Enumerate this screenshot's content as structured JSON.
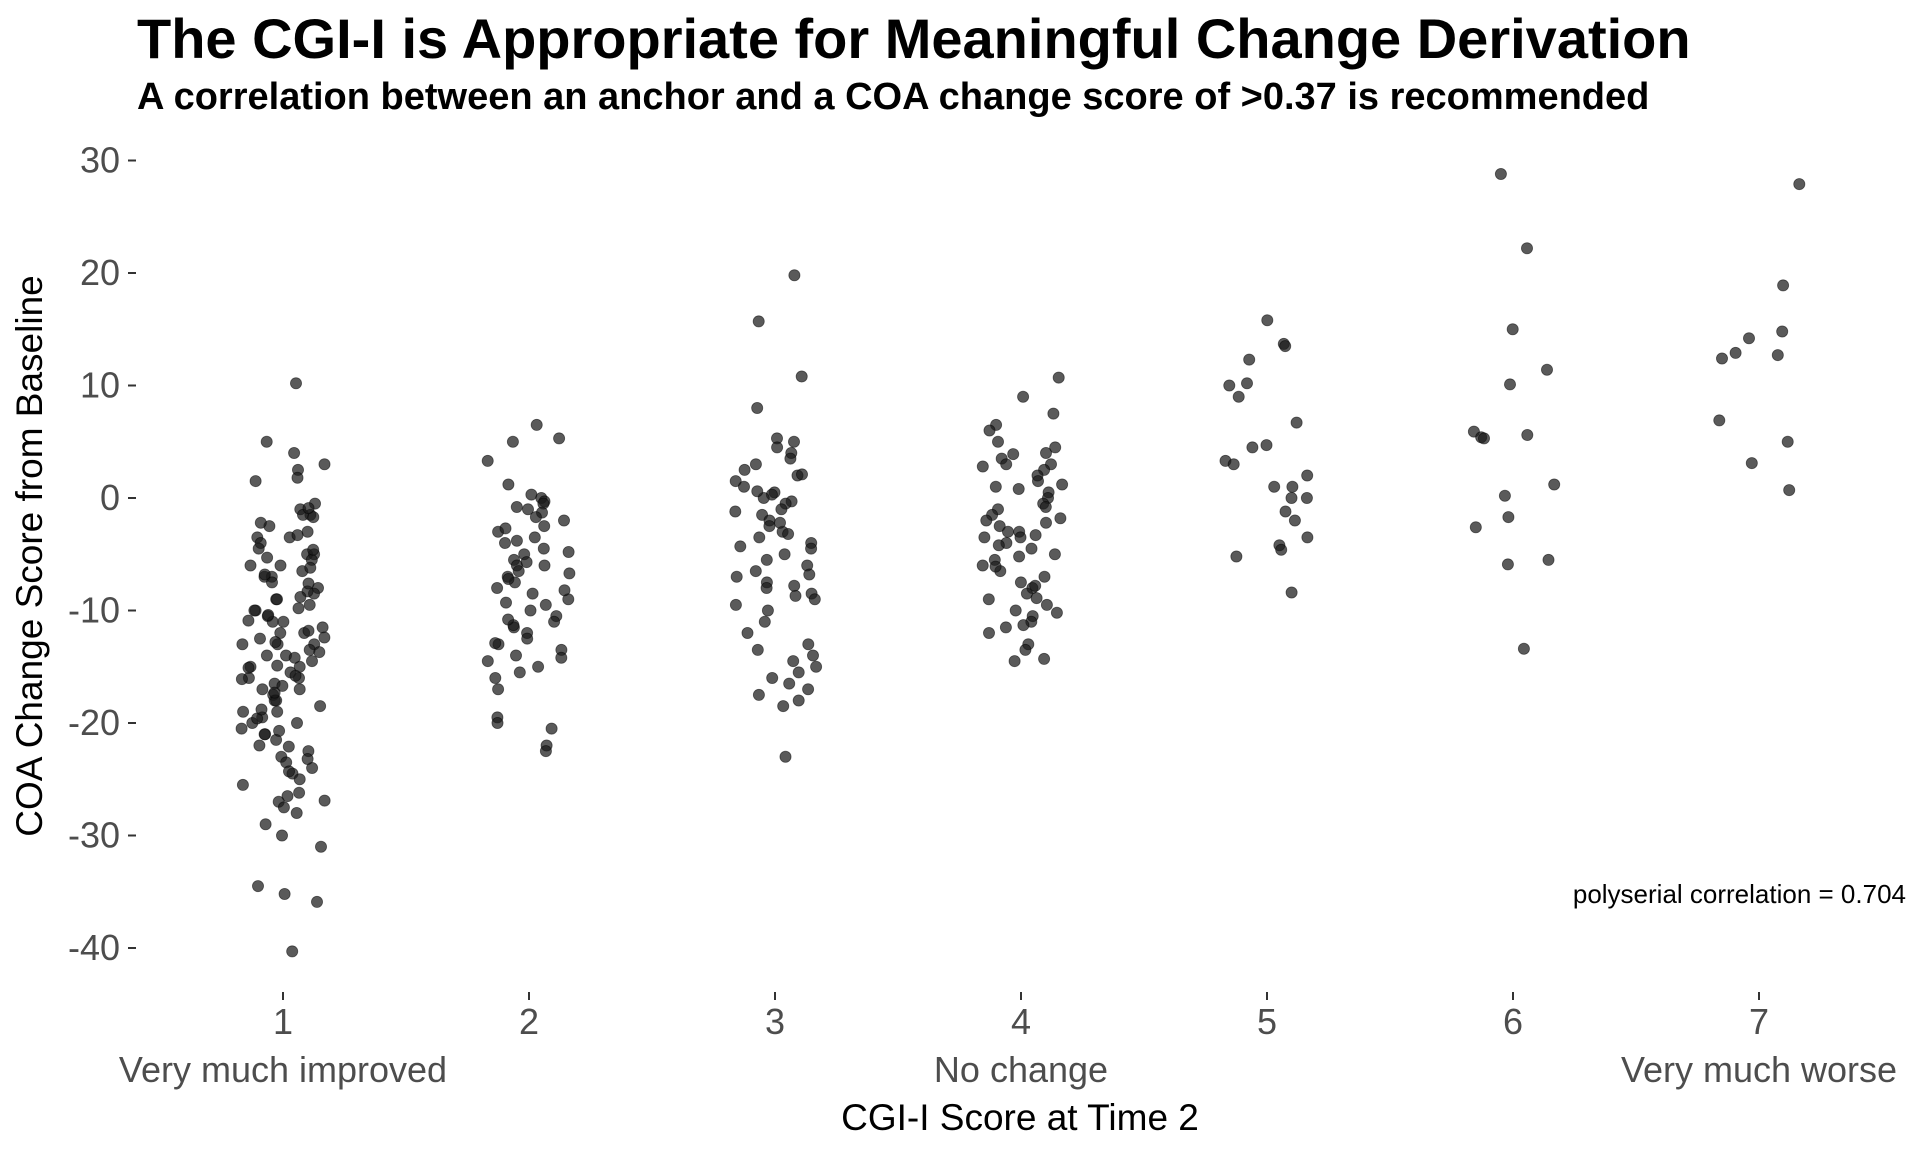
{
  "title": "The CGI-I is Appropriate for Meaningful Change Derivation",
  "subtitle": "A correlation between an anchor and a COA change score of >0.37 is recommended",
  "annotation": "polyserial correlation =  0.704",
  "point_color": "#1a1a1a",
  "chart_data": {
    "type": "scatter",
    "title": "The CGI-I is Appropriate for Meaningful Change Derivation",
    "subtitle": "A correlation between an anchor and a COA change score of >0.37 is recommended",
    "xlabel": "CGI-I Score at Time 2",
    "ylabel": "COA Change Score from Baseline",
    "x_ticks": [
      "1",
      "2",
      "3",
      "4",
      "5",
      "6",
      "7"
    ],
    "x_anchor_labels": [
      {
        "x": 1,
        "text": "Very much improved"
      },
      {
        "x": 4,
        "text": "No change"
      },
      {
        "x": 7,
        "text": "Very much worse"
      }
    ],
    "y_ticks": [
      "30",
      "20",
      "10",
      "0",
      "-10",
      "-20",
      "-30",
      "-40"
    ],
    "ylim": [
      -42,
      31
    ],
    "xlim": [
      0.5,
      7.65
    ],
    "grid": false,
    "jitter": "horizontal, about ±0.15 around each category",
    "groups": [
      {
        "x": 1,
        "y": [
          10.2,
          5,
          4,
          3,
          2.5,
          1.8,
          1.5,
          -0.5,
          -1,
          -1.5,
          -1.5,
          -2.5,
          -3,
          -3.5,
          -3.5,
          -4,
          -4.5,
          -5,
          -5,
          -5.5,
          -6,
          -6,
          -6.5,
          -7,
          -7,
          -7.5,
          -8,
          -8.5,
          -9,
          -9,
          -9.5,
          -10,
          -10,
          -10.5,
          -11,
          -11,
          -11.5,
          -12,
          -12,
          -12.5,
          -13,
          -13,
          -13.5,
          -14,
          -14,
          -14.5,
          -15,
          -15,
          -15.5,
          -16,
          -16,
          -16.5,
          -17,
          -17,
          -17.5,
          -18,
          -18,
          -18.5,
          -19,
          -19,
          -19.5,
          -20,
          -20,
          -20.5,
          -21,
          -21,
          -21.5,
          -22,
          -22.5,
          -23,
          -23.5,
          -24,
          -24.5,
          -25,
          -25.5,
          -26.5,
          -27,
          -27.5,
          -28,
          -29,
          -30,
          -31,
          -34.5,
          -35.2,
          -35.9,
          -40.3,
          -13,
          -14.2,
          -15.8,
          -17.3,
          -11.8,
          -9.8,
          -6.8,
          -8.3,
          -12.4,
          -16.7,
          -19.6,
          -22.1,
          -3.3,
          -1.7,
          -24.3,
          -26.2,
          -10.9,
          -13.7,
          -15.1,
          -18.8,
          -20.7,
          -7.6,
          -5.3,
          -4.6,
          -2.2,
          -0.9,
          -12.8,
          -14.9,
          -16.1,
          -10.4,
          -8.8,
          -6.2,
          -23.2,
          -26.9
        ]
      },
      {
        "x": 2,
        "y": [
          6.5,
          5.3,
          5,
          3.3,
          1.2,
          0.3,
          0,
          -0.3,
          -0.5,
          -1,
          -1.3,
          -2,
          -2.5,
          -3,
          -3.5,
          -4,
          -4.5,
          -5,
          -5.5,
          -6,
          -6,
          -6.5,
          -7,
          -7.5,
          -8,
          -8.5,
          -9,
          -9.5,
          -10,
          -10.5,
          -11,
          -11.5,
          -12,
          -12.5,
          -13,
          -13.5,
          -14,
          -14.5,
          -15,
          -15.5,
          -16,
          -17,
          -19.5,
          -20,
          -20.5,
          -22,
          -22.5,
          -0.8,
          -2.7,
          -5.7,
          -8.2,
          -11.3,
          -12.9,
          -14.2,
          -3.8,
          -6.7,
          -9.3,
          -10.8,
          -1.7,
          -4.8,
          -7.2
        ]
      },
      {
        "x": 3,
        "y": [
          19.8,
          15.7,
          10.8,
          8,
          5.3,
          5,
          4.5,
          4,
          3.5,
          3,
          2.5,
          2,
          1.5,
          1,
          0.5,
          0.3,
          0,
          -0.3,
          -0.5,
          -1,
          -1.5,
          -2,
          -2.5,
          -3,
          -3.5,
          -4,
          -4.5,
          -5,
          -5.5,
          -6,
          -6.5,
          -7,
          -7.5,
          -8,
          -8.5,
          -9,
          -9.5,
          -10,
          -11,
          -12,
          -13,
          -13.5,
          -14,
          -14.5,
          -15,
          -15.5,
          -16,
          -16.5,
          -17,
          -17.5,
          -18,
          -18.5,
          -23,
          -2.2,
          -4.3,
          -6.8,
          -8.7,
          -1.2,
          -3.2,
          0.6,
          2.1,
          -7.8
        ]
      },
      {
        "x": 4,
        "y": [
          10.7,
          9,
          7.5,
          6.5,
          6,
          5,
          4.5,
          4,
          3.5,
          3,
          3,
          2.5,
          2,
          1.5,
          1,
          0.5,
          0,
          -0.5,
          -1,
          -1.5,
          -2,
          -2.5,
          -3,
          -3,
          -3.5,
          -3.5,
          -4,
          -4.5,
          -5,
          -5.5,
          -6,
          -6.5,
          -7,
          -7.5,
          -8,
          -8.5,
          -9,
          -9.5,
          -10,
          -10.5,
          -11,
          -11.5,
          -12,
          -13,
          -13.5,
          -14.3,
          -14.5,
          2.8,
          1.2,
          -0.8,
          -2.2,
          -4.2,
          -6.1,
          -7.8,
          -10.2,
          3.9,
          0.8,
          -1.8,
          -3.3,
          -5.2,
          -8.9,
          -11.3
        ]
      },
      {
        "x": 5,
        "y": [
          15.8,
          13.7,
          13.5,
          12.3,
          10.2,
          10,
          9,
          6.7,
          4.7,
          4.5,
          3.3,
          3,
          2,
          1,
          1,
          0,
          0,
          -1.2,
          -2,
          -3.5,
          -4.2,
          -4.6,
          -5.2,
          -8.4
        ]
      },
      {
        "x": 6,
        "y": [
          28.8,
          22.2,
          15,
          11.4,
          10.1,
          5.9,
          5.6,
          5.4,
          5.3,
          1.2,
          0.2,
          -1.7,
          -2.6,
          -5.5,
          -5.9,
          -13.4
        ]
      },
      {
        "x": 7,
        "y": [
          27.9,
          18.9,
          14.8,
          14.2,
          12.9,
          12.7,
          12.4,
          6.9,
          5,
          3.1,
          0.7
        ]
      }
    ]
  }
}
